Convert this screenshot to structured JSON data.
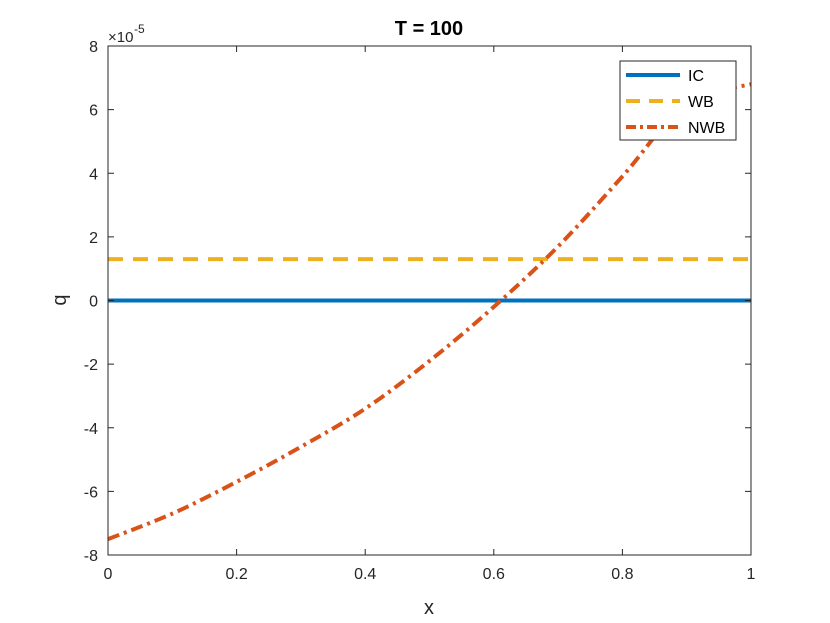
{
  "chart_data": {
    "type": "line",
    "title": "T = 100",
    "xlabel": "x",
    "ylabel": "q",
    "xlim": [
      0,
      1
    ],
    "ylim": [
      -8,
      8
    ],
    "y_exponent_label": "×10",
    "y_exponent_power": "-5",
    "xticks": [
      "0",
      "0.2",
      "0.4",
      "0.6",
      "0.8",
      "1"
    ],
    "yticks": [
      "-8",
      "-6",
      "-4",
      "-2",
      "0",
      "2",
      "4",
      "6",
      "8"
    ],
    "legend_position": "top-right",
    "grid": false,
    "series": [
      {
        "name": "IC",
        "color": "#0072BD",
        "style": "solid",
        "x": [
          0,
          0.1,
          0.2,
          0.3,
          0.4,
          0.5,
          0.6,
          0.7,
          0.8,
          0.9,
          1.0
        ],
        "y": [
          0,
          0,
          0,
          0,
          0,
          0,
          0,
          0,
          0,
          0,
          0
        ]
      },
      {
        "name": "WB",
        "color": "#EDB120",
        "style": "dashed",
        "x": [
          0,
          0.1,
          0.2,
          0.3,
          0.4,
          0.5,
          0.6,
          0.7,
          0.8,
          0.9,
          1.0
        ],
        "y": [
          1.3,
          1.3,
          1.3,
          1.3,
          1.3,
          1.3,
          1.3,
          1.3,
          1.3,
          1.3,
          1.3
        ]
      },
      {
        "name": "NWB",
        "color": "#D95319",
        "style": "dashdot",
        "x": [
          0,
          0.1,
          0.2,
          0.3,
          0.4,
          0.5,
          0.6,
          0.7,
          0.8,
          0.9,
          1.0
        ],
        "y": [
          -7.5,
          -6.7,
          -5.7,
          -4.6,
          -3.4,
          -1.9,
          -0.2,
          1.7,
          3.9,
          6.2,
          6.8
        ]
      }
    ]
  }
}
